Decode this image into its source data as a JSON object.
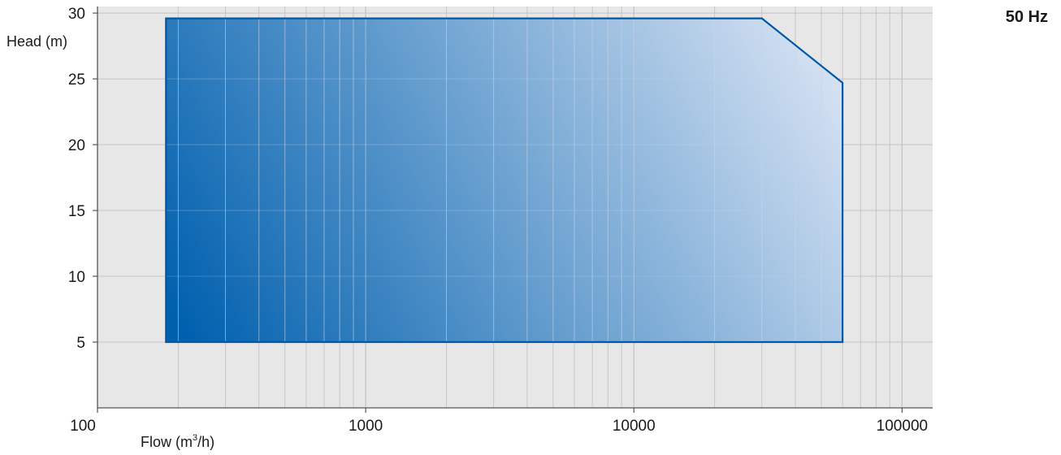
{
  "chart_data": {
    "type": "area",
    "title": "",
    "frequency_label": "50 Hz",
    "xlabel_main": "Flow (m",
    "xlabel_sup": "3",
    "xlabel_end": "/h)",
    "ylabel": "Head (m)",
    "x_scale": "log",
    "xlim": [
      100,
      130000
    ],
    "ylim": [
      0,
      30.5
    ],
    "x_ticks": [
      100,
      1000,
      10000,
      100000
    ],
    "x_tick_labels": [
      "100",
      "1000",
      "10000",
      "100000"
    ],
    "y_ticks": [
      5,
      10,
      15,
      20,
      25,
      30
    ],
    "y_tick_labels": [
      "5",
      "10",
      "15",
      "20",
      "25",
      "30"
    ],
    "grid": true,
    "series": [
      {
        "points": [
          {
            "x": 180,
            "y": 5
          },
          {
            "x": 180,
            "y": 29.6
          },
          {
            "x": 30000,
            "y": 29.6
          },
          {
            "x": 60000,
            "y": 24.7
          },
          {
            "x": 60000,
            "y": 5
          }
        ]
      }
    ],
    "colors": {
      "plot_background": "#e7e7e8",
      "grid": "#c4c4c6",
      "inner_grid": "#c9d3e8",
      "fill_dark": "#0060ae",
      "fill_light": "#eaeef9",
      "outline": "#0058a8"
    }
  }
}
